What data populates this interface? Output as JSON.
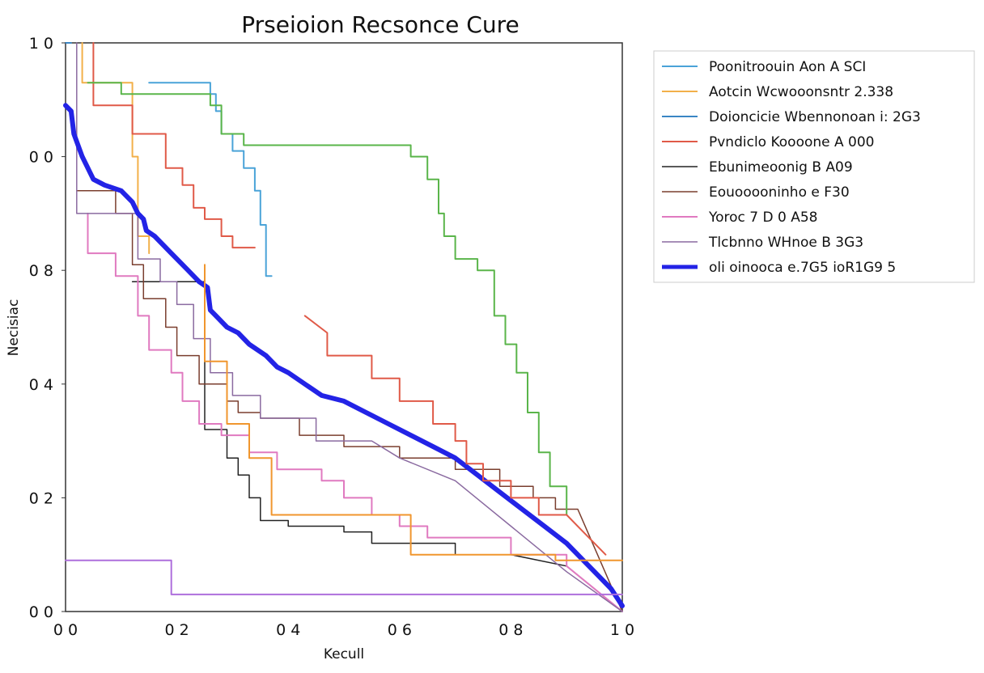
{
  "chart_data": {
    "type": "line",
    "title": "Prseioion Recsonce Cure",
    "xlabel": "Kecull",
    "ylabel": "Necisiac",
    "xlim": [
      0,
      1
    ],
    "ylim": [
      0,
      1
    ],
    "x_ticks": [
      "0 0",
      "0 2",
      "0 4",
      "0 6",
      "0 8",
      "1 0"
    ],
    "y_ticks": [
      "0 0",
      "0 2",
      "0 4",
      "0 8",
      "0 0",
      "1 0"
    ],
    "grid": false,
    "legend_position": "outside-top-right",
    "series": [
      {
        "name": "Poonitroouin Aon A SCI",
        "color": "#4aa3d8",
        "width": 2,
        "points": [
          [
            0.15,
            0.93
          ],
          [
            0.26,
            0.93
          ],
          [
            0.26,
            0.91
          ],
          [
            0.27,
            0.91
          ],
          [
            0.27,
            0.88
          ],
          [
            0.28,
            0.88
          ],
          [
            0.28,
            0.84
          ],
          [
            0.3,
            0.84
          ],
          [
            0.3,
            0.81
          ],
          [
            0.32,
            0.81
          ],
          [
            0.32,
            0.78
          ],
          [
            0.34,
            0.78
          ],
          [
            0.34,
            0.74
          ],
          [
            0.35,
            0.74
          ],
          [
            0.35,
            0.68
          ],
          [
            0.36,
            0.68
          ],
          [
            0.36,
            0.59
          ],
          [
            0.37,
            0.59
          ],
          [
            0.37,
            0.59
          ]
        ]
      },
      {
        "name": "Aotcin Wcwooonsntr 2.338",
        "color": "#f2b04a",
        "width": 2,
        "points": [
          [
            0.03,
            1.0
          ],
          [
            0.03,
            0.93
          ],
          [
            0.12,
            0.93
          ],
          [
            0.12,
            0.8
          ],
          [
            0.13,
            0.8
          ],
          [
            0.13,
            0.66
          ],
          [
            0.15,
            0.66
          ],
          [
            0.15,
            0.63
          ]
        ]
      },
      {
        "name": "Doioncicie Wbennonoan i: 2G3",
        "color": "#3a86c4",
        "width": 2,
        "points": [
          [
            0.0,
            1.0
          ],
          [
            0.01,
            1.0
          ]
        ]
      },
      {
        "name": "Pvndiclo Koooone A 000",
        "color": "#e05a48",
        "width": 2,
        "points": [
          [
            0.05,
            1.0
          ],
          [
            0.05,
            0.89
          ],
          [
            0.12,
            0.89
          ],
          [
            0.12,
            0.84
          ],
          [
            0.18,
            0.84
          ],
          [
            0.18,
            0.78
          ],
          [
            0.21,
            0.78
          ],
          [
            0.21,
            0.75
          ],
          [
            0.23,
            0.75
          ],
          [
            0.23,
            0.71
          ],
          [
            0.25,
            0.71
          ],
          [
            0.25,
            0.69
          ],
          [
            0.28,
            0.69
          ],
          [
            0.28,
            0.66
          ],
          [
            0.3,
            0.66
          ],
          [
            0.3,
            0.64
          ],
          [
            0.34,
            0.64
          ]
        ]
      },
      {
        "name": "Ebunimeoonig B A09",
        "color": "#222222",
        "width": 1.5,
        "points": [
          [
            0.12,
            0.58
          ],
          [
            0.25,
            0.58
          ],
          [
            0.25,
            0.32
          ],
          [
            0.29,
            0.32
          ],
          [
            0.29,
            0.27
          ],
          [
            0.31,
            0.27
          ],
          [
            0.31,
            0.24
          ],
          [
            0.33,
            0.24
          ],
          [
            0.33,
            0.2
          ],
          [
            0.35,
            0.2
          ],
          [
            0.35,
            0.16
          ],
          [
            0.4,
            0.16
          ],
          [
            0.4,
            0.15
          ],
          [
            0.5,
            0.15
          ],
          [
            0.5,
            0.14
          ],
          [
            0.55,
            0.14
          ],
          [
            0.55,
            0.12
          ],
          [
            0.7,
            0.12
          ],
          [
            0.7,
            0.1
          ],
          [
            0.8,
            0.1
          ],
          [
            0.9,
            0.08
          ],
          [
            1.0,
            0.0
          ]
        ]
      },
      {
        "name": "Eouooooninho e F30",
        "color": "#7a3e2e",
        "width": 1.5,
        "points": [
          [
            0.02,
            0.74
          ],
          [
            0.09,
            0.74
          ],
          [
            0.09,
            0.7
          ],
          [
            0.12,
            0.7
          ],
          [
            0.12,
            0.61
          ],
          [
            0.14,
            0.61
          ],
          [
            0.14,
            0.55
          ],
          [
            0.18,
            0.55
          ],
          [
            0.18,
            0.5
          ],
          [
            0.2,
            0.5
          ],
          [
            0.2,
            0.45
          ],
          [
            0.24,
            0.45
          ],
          [
            0.24,
            0.4
          ],
          [
            0.29,
            0.4
          ],
          [
            0.29,
            0.37
          ],
          [
            0.31,
            0.37
          ],
          [
            0.31,
            0.35
          ],
          [
            0.35,
            0.35
          ],
          [
            0.35,
            0.34
          ],
          [
            0.42,
            0.34
          ],
          [
            0.42,
            0.31
          ],
          [
            0.5,
            0.31
          ],
          [
            0.5,
            0.29
          ],
          [
            0.6,
            0.29
          ],
          [
            0.6,
            0.27
          ],
          [
            0.7,
            0.27
          ],
          [
            0.7,
            0.25
          ],
          [
            0.78,
            0.25
          ],
          [
            0.78,
            0.22
          ],
          [
            0.84,
            0.22
          ],
          [
            0.84,
            0.2
          ],
          [
            0.88,
            0.2
          ],
          [
            0.88,
            0.18
          ],
          [
            0.92,
            0.18
          ],
          [
            1.0,
            0.0
          ]
        ]
      },
      {
        "name": "Yoroc 7 D 0 A58",
        "color": "#e07ac0",
        "width": 2,
        "points": [
          [
            0.04,
            0.7
          ],
          [
            0.04,
            0.63
          ],
          [
            0.09,
            0.63
          ],
          [
            0.09,
            0.59
          ],
          [
            0.13,
            0.59
          ],
          [
            0.13,
            0.52
          ],
          [
            0.15,
            0.52
          ],
          [
            0.15,
            0.46
          ],
          [
            0.19,
            0.46
          ],
          [
            0.19,
            0.42
          ],
          [
            0.21,
            0.42
          ],
          [
            0.21,
            0.37
          ],
          [
            0.24,
            0.37
          ],
          [
            0.24,
            0.33
          ],
          [
            0.28,
            0.33
          ],
          [
            0.28,
            0.31
          ],
          [
            0.33,
            0.31
          ],
          [
            0.33,
            0.28
          ],
          [
            0.38,
            0.28
          ],
          [
            0.38,
            0.25
          ],
          [
            0.46,
            0.25
          ],
          [
            0.46,
            0.23
          ],
          [
            0.5,
            0.23
          ],
          [
            0.5,
            0.2
          ],
          [
            0.55,
            0.2
          ],
          [
            0.55,
            0.17
          ],
          [
            0.6,
            0.17
          ],
          [
            0.6,
            0.15
          ],
          [
            0.65,
            0.15
          ],
          [
            0.65,
            0.13
          ],
          [
            0.8,
            0.13
          ],
          [
            0.8,
            0.1
          ],
          [
            0.9,
            0.1
          ],
          [
            0.9,
            0.08
          ],
          [
            1.0,
            0.0
          ]
        ]
      },
      {
        "name": "Tlcbnno WHnoe B 3G3",
        "color": "#8a6aa0",
        "width": 1.5,
        "points": [
          [
            0.02,
            1.0
          ],
          [
            0.02,
            0.93
          ],
          [
            0.02,
            0.7
          ],
          [
            0.13,
            0.7
          ],
          [
            0.13,
            0.62
          ],
          [
            0.17,
            0.62
          ],
          [
            0.17,
            0.58
          ],
          [
            0.2,
            0.58
          ],
          [
            0.2,
            0.54
          ],
          [
            0.23,
            0.54
          ],
          [
            0.23,
            0.48
          ],
          [
            0.26,
            0.48
          ],
          [
            0.26,
            0.42
          ],
          [
            0.3,
            0.42
          ],
          [
            0.3,
            0.38
          ],
          [
            0.35,
            0.38
          ],
          [
            0.35,
            0.34
          ],
          [
            0.45,
            0.34
          ],
          [
            0.45,
            0.3
          ],
          [
            0.55,
            0.3
          ],
          [
            0.6,
            0.27
          ],
          [
            0.7,
            0.23
          ],
          [
            0.8,
            0.15
          ],
          [
            0.9,
            0.07
          ],
          [
            1.0,
            0.0
          ]
        ]
      },
      {
        "name": "oli oinooca e.7G5 ioR1G9 5",
        "color": "#2323e6",
        "width": 6,
        "points": [
          [
            0.0,
            0.89
          ],
          [
            0.01,
            0.88
          ],
          [
            0.015,
            0.84
          ],
          [
            0.03,
            0.8
          ],
          [
            0.05,
            0.76
          ],
          [
            0.07,
            0.75
          ],
          [
            0.1,
            0.74
          ],
          [
            0.12,
            0.72
          ],
          [
            0.13,
            0.7
          ],
          [
            0.14,
            0.69
          ],
          [
            0.145,
            0.67
          ],
          [
            0.16,
            0.66
          ],
          [
            0.19,
            0.63
          ],
          [
            0.22,
            0.6
          ],
          [
            0.24,
            0.58
          ],
          [
            0.255,
            0.57
          ],
          [
            0.26,
            0.53
          ],
          [
            0.27,
            0.52
          ],
          [
            0.29,
            0.5
          ],
          [
            0.31,
            0.49
          ],
          [
            0.33,
            0.47
          ],
          [
            0.36,
            0.45
          ],
          [
            0.38,
            0.43
          ],
          [
            0.4,
            0.42
          ],
          [
            0.43,
            0.4
          ],
          [
            0.46,
            0.38
          ],
          [
            0.5,
            0.37
          ],
          [
            0.54,
            0.35
          ],
          [
            0.58,
            0.33
          ],
          [
            0.62,
            0.31
          ],
          [
            0.66,
            0.29
          ],
          [
            0.7,
            0.27
          ],
          [
            0.74,
            0.24
          ],
          [
            0.78,
            0.21
          ],
          [
            0.82,
            0.18
          ],
          [
            0.86,
            0.15
          ],
          [
            0.9,
            0.12
          ],
          [
            0.93,
            0.09
          ],
          [
            0.96,
            0.06
          ],
          [
            0.98,
            0.04
          ],
          [
            1.0,
            0.01
          ]
        ]
      },
      {
        "name": "",
        "color": "#5ab54a",
        "width": 2,
        "legend": false,
        "points": [
          [
            0.04,
            0.93
          ],
          [
            0.1,
            0.93
          ],
          [
            0.1,
            0.91
          ],
          [
            0.26,
            0.91
          ],
          [
            0.26,
            0.89
          ],
          [
            0.28,
            0.89
          ],
          [
            0.28,
            0.84
          ],
          [
            0.32,
            0.84
          ],
          [
            0.32,
            0.82
          ],
          [
            0.62,
            0.82
          ],
          [
            0.62,
            0.8
          ],
          [
            0.65,
            0.8
          ],
          [
            0.65,
            0.76
          ],
          [
            0.67,
            0.76
          ],
          [
            0.67,
            0.7
          ],
          [
            0.68,
            0.7
          ],
          [
            0.68,
            0.66
          ],
          [
            0.7,
            0.66
          ],
          [
            0.7,
            0.62
          ],
          [
            0.74,
            0.62
          ],
          [
            0.74,
            0.6
          ],
          [
            0.77,
            0.6
          ],
          [
            0.77,
            0.52
          ],
          [
            0.79,
            0.52
          ],
          [
            0.79,
            0.47
          ],
          [
            0.81,
            0.47
          ],
          [
            0.81,
            0.42
          ],
          [
            0.83,
            0.42
          ],
          [
            0.83,
            0.35
          ],
          [
            0.85,
            0.35
          ],
          [
            0.85,
            0.28
          ],
          [
            0.87,
            0.28
          ],
          [
            0.87,
            0.22
          ],
          [
            0.9,
            0.22
          ],
          [
            0.9,
            0.17
          ]
        ]
      },
      {
        "name": "",
        "color": "#f0962e",
        "width": 2,
        "legend": false,
        "points": [
          [
            0.25,
            0.61
          ],
          [
            0.25,
            0.44
          ],
          [
            0.29,
            0.44
          ],
          [
            0.29,
            0.33
          ],
          [
            0.33,
            0.33
          ],
          [
            0.33,
            0.27
          ],
          [
            0.37,
            0.27
          ],
          [
            0.37,
            0.17
          ],
          [
            0.62,
            0.17
          ],
          [
            0.62,
            0.1
          ],
          [
            0.75,
            0.1
          ],
          [
            0.8,
            0.1
          ],
          [
            0.88,
            0.1
          ],
          [
            0.88,
            0.09
          ],
          [
            1.0,
            0.09
          ]
        ]
      },
      {
        "name": "",
        "color": "#e05a48",
        "width": 2,
        "legend": false,
        "points": [
          [
            0.43,
            0.52
          ],
          [
            0.47,
            0.49
          ],
          [
            0.47,
            0.45
          ],
          [
            0.55,
            0.45
          ],
          [
            0.55,
            0.41
          ],
          [
            0.6,
            0.41
          ],
          [
            0.6,
            0.37
          ],
          [
            0.66,
            0.37
          ],
          [
            0.66,
            0.33
          ],
          [
            0.7,
            0.33
          ],
          [
            0.7,
            0.3
          ],
          [
            0.72,
            0.3
          ],
          [
            0.72,
            0.26
          ],
          [
            0.75,
            0.26
          ],
          [
            0.75,
            0.23
          ],
          [
            0.8,
            0.23
          ],
          [
            0.8,
            0.2
          ],
          [
            0.85,
            0.2
          ],
          [
            0.85,
            0.17
          ],
          [
            0.9,
            0.17
          ],
          [
            0.93,
            0.14
          ],
          [
            0.97,
            0.1
          ]
        ]
      },
      {
        "name": "",
        "color": "#ae6fdc",
        "width": 2,
        "legend": false,
        "points": [
          [
            0.0,
            0.09
          ],
          [
            0.19,
            0.09
          ],
          [
            0.19,
            0.03
          ],
          [
            1.0,
            0.03
          ]
        ]
      }
    ]
  }
}
